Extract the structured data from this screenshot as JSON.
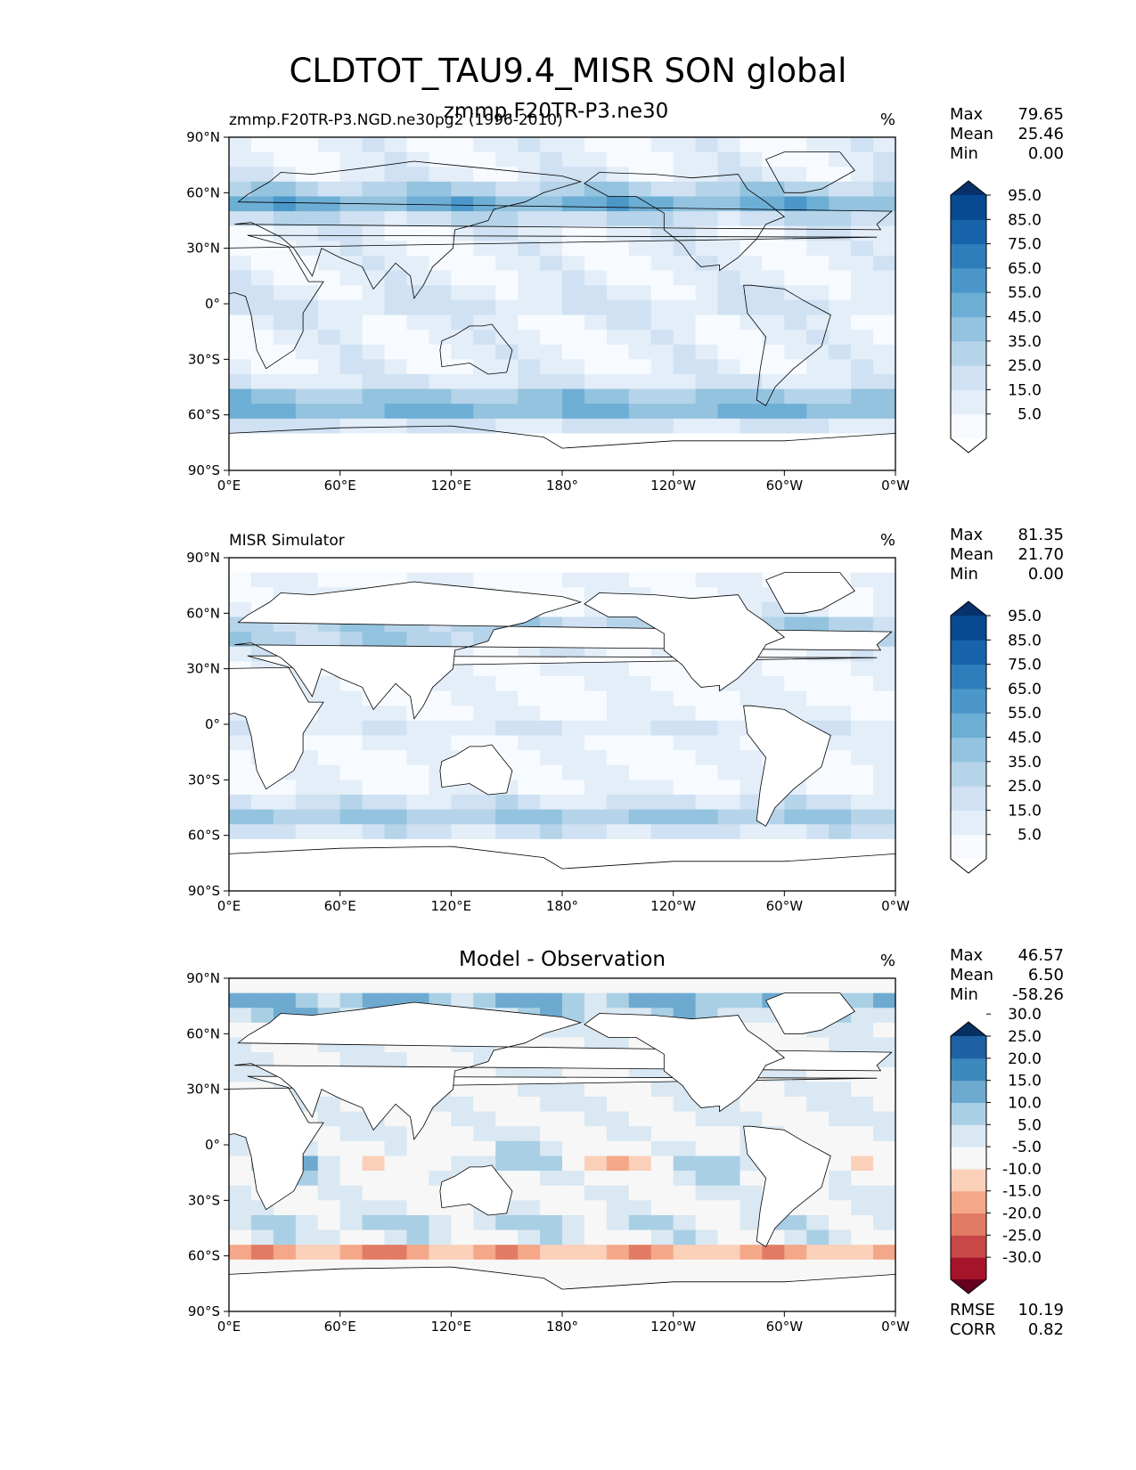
{
  "title": "CLDTOT_TAU9.4_MISR SON global",
  "overlap_title": "zmmp.F20TR-P3.ne30",
  "chart_data": [
    {
      "type": "heatmap",
      "name": "test",
      "left_title": "zmmp.F20TR-P3.NGD.ne30pg2 (1996-2010)",
      "center_title": "",
      "units": "%",
      "stats": {
        "labels": [
          "Max",
          "Mean",
          "Min"
        ],
        "values": [
          "79.65",
          "25.46",
          "0.00"
        ]
      },
      "colorbar": {
        "levels": [
          "5.0",
          "15.0",
          "25.0",
          "35.0",
          "45.0",
          "55.0",
          "65.0",
          "75.0",
          "85.0",
          "95.0"
        ],
        "colors": [
          "#ffffff",
          "#f7fbff",
          "#e3eef9",
          "#cfe1f2",
          "#b5d4e9",
          "#93c3df",
          "#6daed5",
          "#4b97c9",
          "#2f7ebc",
          "#1764ab",
          "#084a91",
          "#08306b"
        ]
      },
      "xticks": [
        "0°E",
        "60°E",
        "120°E",
        "180°",
        "120°W",
        "60°W",
        "0°W"
      ],
      "yticks": [
        "90°N",
        "60°N",
        "30°N",
        "0°",
        "30°S",
        "60°S",
        "90°S"
      ],
      "xlim": [
        0,
        360
      ],
      "ylim": [
        -90,
        90
      ]
    },
    {
      "type": "heatmap",
      "name": "reference",
      "left_title": "MISR Simulator",
      "center_title": "",
      "units": "%",
      "stats": {
        "labels": [
          "Max",
          "Mean",
          "Min"
        ],
        "values": [
          "81.35",
          "21.70",
          "0.00"
        ]
      },
      "colorbar": {
        "levels": [
          "5.0",
          "15.0",
          "25.0",
          "35.0",
          "45.0",
          "55.0",
          "65.0",
          "75.0",
          "85.0",
          "95.0"
        ],
        "colors": [
          "#ffffff",
          "#f7fbff",
          "#e3eef9",
          "#cfe1f2",
          "#b5d4e9",
          "#93c3df",
          "#6daed5",
          "#4b97c9",
          "#2f7ebc",
          "#1764ab",
          "#084a91",
          "#08306b"
        ]
      },
      "xticks": [
        "0°E",
        "60°E",
        "120°E",
        "180°",
        "120°W",
        "60°W",
        "0°W"
      ],
      "yticks": [
        "90°N",
        "60°N",
        "30°N",
        "0°",
        "30°S",
        "60°S",
        "90°S"
      ],
      "xlim": [
        0,
        360
      ],
      "ylim": [
        -90,
        90
      ]
    },
    {
      "type": "heatmap",
      "name": "difference",
      "left_title": "",
      "center_title": "Model - Observation",
      "units": "%",
      "stats": {
        "labels": [
          "Max",
          "Mean",
          "Min"
        ],
        "values": [
          "46.57",
          "6.50",
          "-58.26"
        ]
      },
      "colorbar": {
        "levels": [
          "-30.0",
          "-25.0",
          "-20.0",
          "-15.0",
          "-10.0",
          "-5.0",
          "5.0",
          "10.0",
          "15.0",
          "20.0",
          "25.0",
          "30.0"
        ],
        "colors": [
          "#67001f",
          "#a51429",
          "#c84747",
          "#e27b64",
          "#f4a889",
          "#fbd0b9",
          "#f7f7f7",
          "#d9e8f2",
          "#a9cfe5",
          "#6eaad0",
          "#3c89bd",
          "#1e61a5",
          "#053061"
        ]
      },
      "metrics": {
        "labels": [
          "RMSE",
          "CORR"
        ],
        "values": [
          "10.19",
          "0.82"
        ]
      },
      "xticks": [
        "0°E",
        "60°E",
        "120°E",
        "180°",
        "120°W",
        "60°W",
        "0°W"
      ],
      "yticks": [
        "90°N",
        "60°N",
        "30°N",
        "0°",
        "30°S",
        "60°S",
        "90°S"
      ],
      "xlim": [
        0,
        360
      ],
      "ylim": [
        -90,
        90
      ]
    }
  ]
}
